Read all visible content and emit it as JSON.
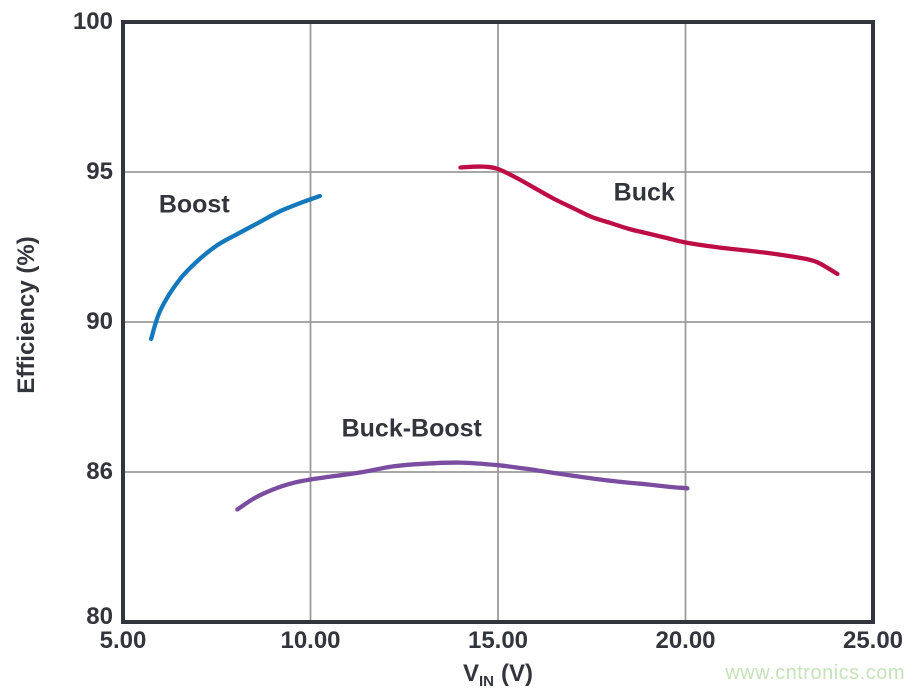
{
  "page": {
    "background": "#ffffff"
  },
  "watermark": {
    "text": "www.cntronics.com",
    "color": "#c5e3ba"
  },
  "chart_data": {
    "type": "line",
    "title": "",
    "xlabel": {
      "main": "V",
      "sub": "IN",
      "unit": "(V)"
    },
    "ylabel": "Efficiency (%)",
    "x_axis": {
      "min": 5,
      "max": 25,
      "tick_values": [
        5,
        10,
        15,
        20,
        25
      ],
      "tick_labels": [
        "5.00",
        "10.00",
        "15.00",
        "20.00",
        "25.00"
      ]
    },
    "y_axis": {
      "tick_values": [
        100,
        95,
        90,
        86,
        80
      ],
      "tick_labels": [
        "100",
        "95",
        "90",
        "86",
        "80"
      ],
      "scale_note": "gridlines evenly spaced although tick values are non-uniform (piecewise scale)"
    },
    "grid": true,
    "axis_color": "#33353c",
    "grid_color": "#9b9b9b",
    "legend": "inline-labels",
    "series": [
      {
        "name": "Boost",
        "color": "#1478bd",
        "points": [
          [
            5.75,
            89.55
          ],
          [
            6.0,
            90.4
          ],
          [
            6.5,
            91.4
          ],
          [
            7.0,
            92.05
          ],
          [
            7.5,
            92.55
          ],
          [
            8.0,
            92.9
          ],
          [
            8.6,
            93.3
          ],
          [
            9.2,
            93.7
          ],
          [
            9.8,
            94.0
          ],
          [
            10.25,
            94.2
          ]
        ]
      },
      {
        "name": "Buck",
        "color": "#bd0d45",
        "points": [
          [
            14.0,
            95.15
          ],
          [
            14.6,
            95.18
          ],
          [
            15.0,
            95.1
          ],
          [
            15.5,
            94.8
          ],
          [
            16.0,
            94.45
          ],
          [
            16.5,
            94.1
          ],
          [
            17.0,
            93.8
          ],
          [
            17.5,
            93.5
          ],
          [
            18.0,
            93.3
          ],
          [
            18.5,
            93.1
          ],
          [
            19.0,
            92.95
          ],
          [
            19.5,
            92.8
          ],
          [
            20.0,
            92.65
          ],
          [
            20.8,
            92.5
          ],
          [
            21.5,
            92.4
          ],
          [
            22.2,
            92.3
          ],
          [
            23.0,
            92.15
          ],
          [
            23.5,
            92.0
          ],
          [
            24.05,
            91.6
          ]
        ]
      },
      {
        "name": "Buck-Boost",
        "color": "#7a4da0",
        "points": [
          [
            8.05,
            84.5
          ],
          [
            8.5,
            84.95
          ],
          [
            9.0,
            85.3
          ],
          [
            9.5,
            85.55
          ],
          [
            10.0,
            85.7
          ],
          [
            10.7,
            85.85
          ],
          [
            11.4,
            86.0
          ],
          [
            12.2,
            86.15
          ],
          [
            13.0,
            86.22
          ],
          [
            14.0,
            86.25
          ],
          [
            15.0,
            86.18
          ],
          [
            16.0,
            86.05
          ],
          [
            17.0,
            85.85
          ],
          [
            18.0,
            85.65
          ],
          [
            19.0,
            85.5
          ],
          [
            19.6,
            85.4
          ],
          [
            20.05,
            85.35
          ]
        ]
      }
    ],
    "annotations": [
      {
        "text": "Boost",
        "x": 6.9,
        "y": 93.9
      },
      {
        "text": "Buck",
        "x": 18.9,
        "y": 94.3
      },
      {
        "text": "Buck-Boost",
        "x": 12.7,
        "y": 87.15
      }
    ]
  }
}
